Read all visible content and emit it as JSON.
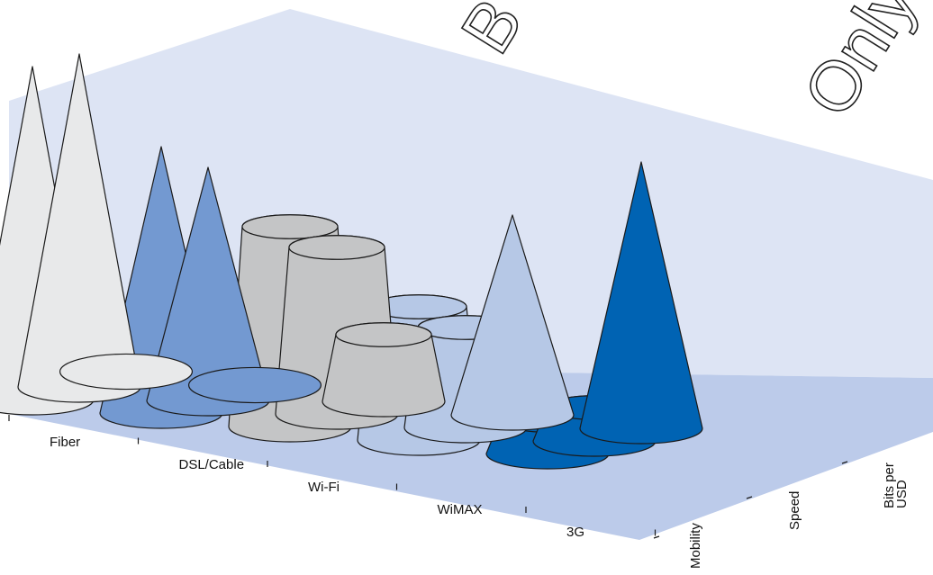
{
  "chart_data": {
    "type": "3d-cone-cylinder",
    "categories": [
      "Fiber",
      "DSL/Cable",
      "Wi-Fi",
      "WiMAX",
      "3G"
    ],
    "metrics": [
      "Mobility",
      "Speed",
      "Bits per USD"
    ],
    "metric_label_lines": [
      [
        "Mobility"
      ],
      [
        "Speed"
      ],
      [
        "Bits per",
        "USD"
      ]
    ],
    "bars": [
      {
        "category": "Fiber",
        "metric": "Bits per USD",
        "shape": "cone",
        "value": 5
      },
      {
        "category": "Fiber",
        "metric": "Speed",
        "shape": "cone",
        "value": 5
      },
      {
        "category": "Fiber",
        "metric": "Mobility",
        "shape": "flat",
        "value": 0
      },
      {
        "category": "DSL/Cable",
        "metric": "Bits per USD",
        "shape": "cone",
        "value": 4
      },
      {
        "category": "DSL/Cable",
        "metric": "Speed",
        "shape": "cone",
        "value": 3.5
      },
      {
        "category": "DSL/Cable",
        "metric": "Mobility",
        "shape": "flat",
        "value": 0
      },
      {
        "category": "Wi-Fi",
        "metric": "Bits per USD",
        "shape": "cylinder",
        "value": 3
      },
      {
        "category": "Wi-Fi",
        "metric": "Speed",
        "shape": "cylinder",
        "value": 2.5
      },
      {
        "category": "Wi-Fi",
        "metric": "Mobility",
        "shape": "cylinder",
        "value": 1
      },
      {
        "category": "WiMAX",
        "metric": "Bits per USD",
        "shape": "cylinder",
        "value": 2
      },
      {
        "category": "WiMAX",
        "metric": "Speed",
        "shape": "cylinder",
        "value": 1.5
      },
      {
        "category": "WiMAX",
        "metric": "Mobility",
        "shape": "cone",
        "value": 3
      },
      {
        "category": "3G",
        "metric": "Bits per USD",
        "shape": "cylinder",
        "value": 0.5
      },
      {
        "category": "3G",
        "metric": "Speed",
        "shape": "cylinder",
        "value": 0.5
      },
      {
        "category": "3G",
        "metric": "Mobility",
        "shape": "cone",
        "value": 4
      }
    ],
    "colors": {
      "Fiber": "#e8e9ea",
      "DSL/Cable": "#7399d1",
      "Wi-Fi": "#c4c5c6",
      "WiMAX": "#b6c8e6",
      "3G": "#0063b3",
      "wall": "#dde4f4",
      "floor": "#bccbea"
    },
    "grid": false,
    "legend": "none",
    "watermark": "B",
    "watermark_2": "Only"
  }
}
